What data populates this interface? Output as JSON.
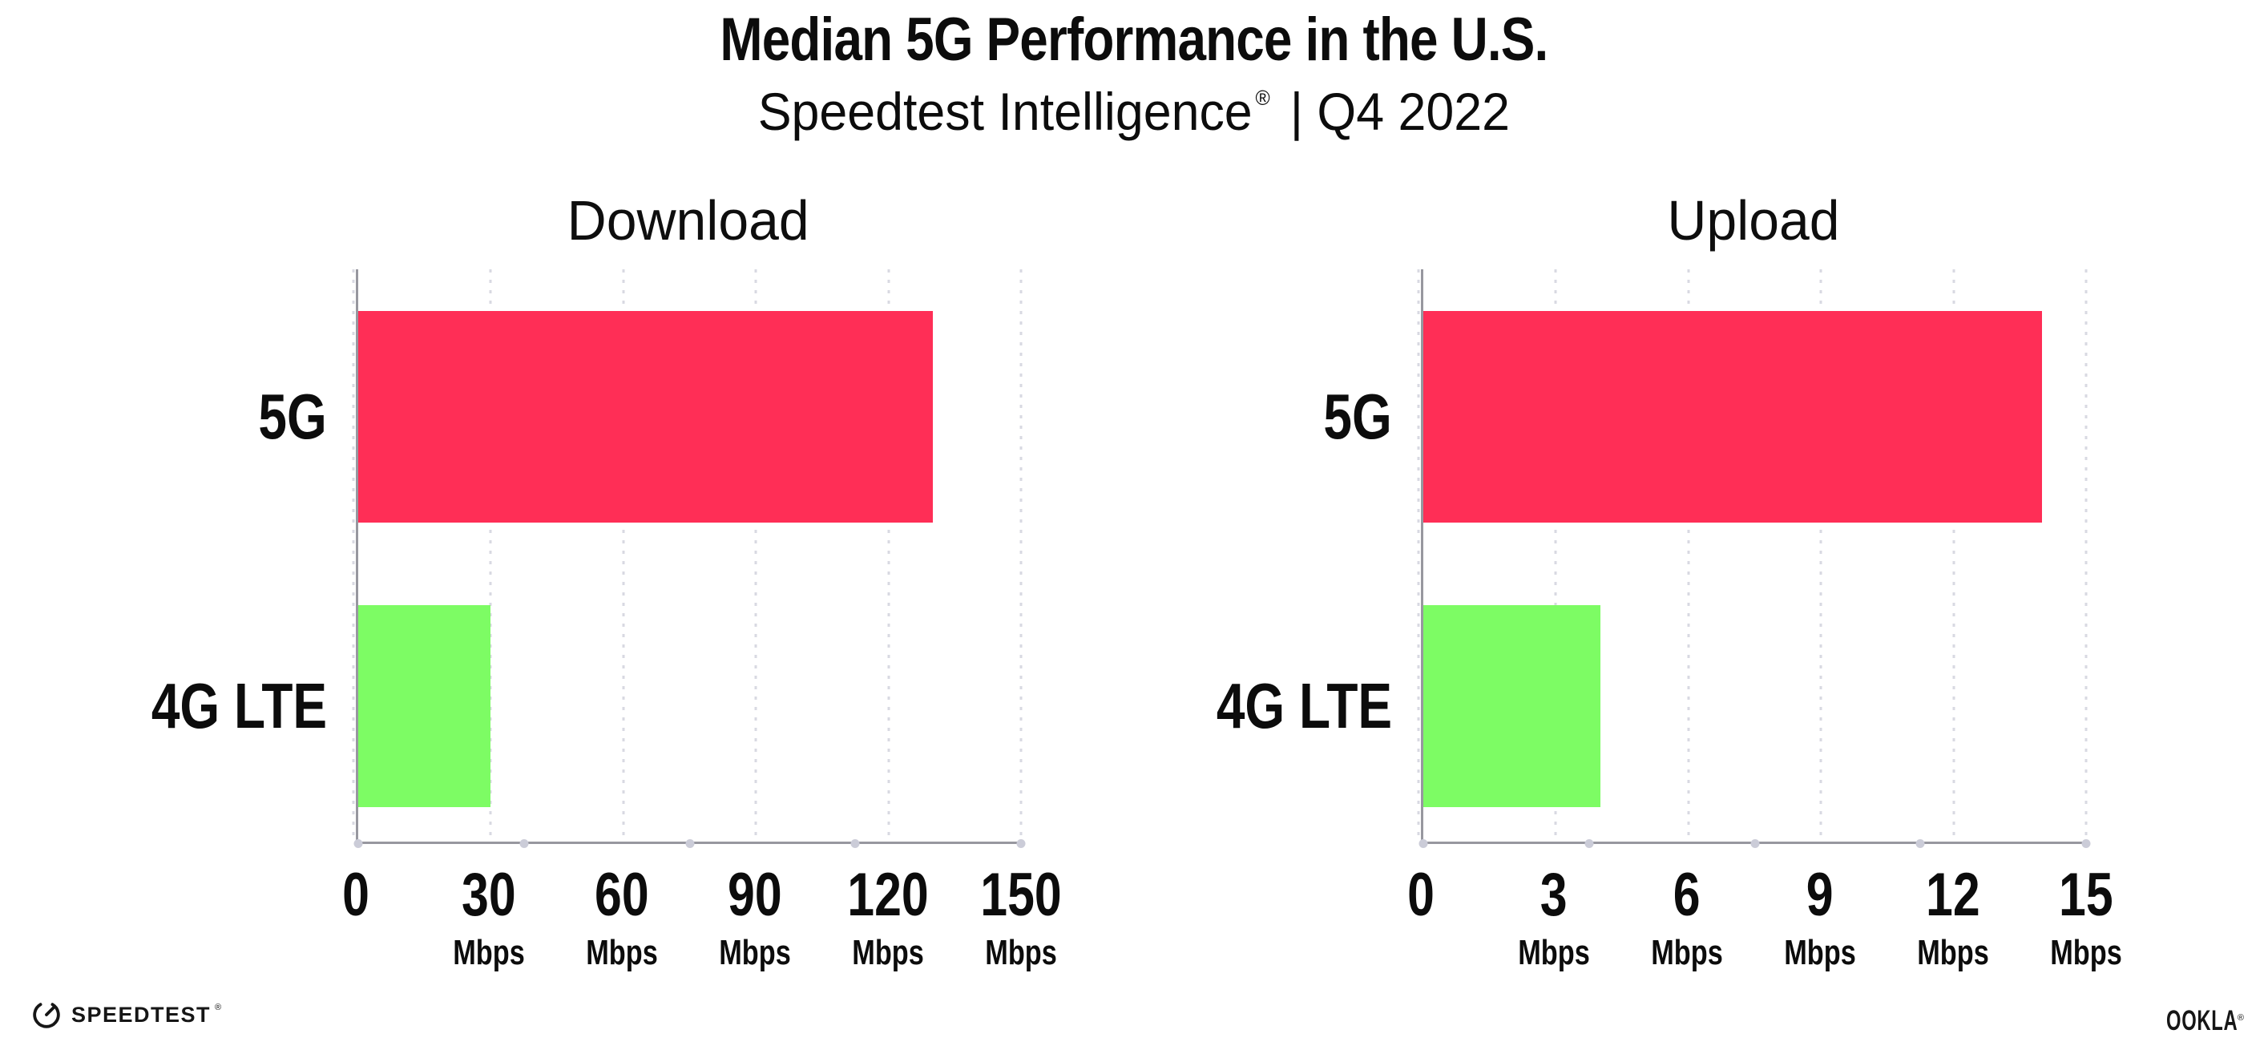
{
  "header": {
    "title": "Median 5G Performance in the U.S.",
    "subtitle_brand": "Speedtest Intelligence",
    "subtitle_registered": "®",
    "subtitle_rest": " | Q4 2022"
  },
  "chart_data": [
    {
      "type": "bar",
      "orientation": "horizontal",
      "title": "Download",
      "categories": [
        "5G",
        "4G LTE"
      ],
      "values": [
        130,
        30
      ],
      "value_unit": "Mbps",
      "xlim": [
        0,
        150
      ],
      "xticks": [
        0,
        30,
        60,
        90,
        120,
        150
      ],
      "tick_unit_label": "Mbps",
      "bar_colors": [
        "#ff2e56",
        "#7dfc64"
      ],
      "grid": "dotted vertical gridlines at each tick",
      "legend": "none"
    },
    {
      "type": "bar",
      "orientation": "horizontal",
      "title": "Upload",
      "categories": [
        "5G",
        "4G LTE"
      ],
      "values": [
        14,
        4
      ],
      "value_unit": "Mbps",
      "xlim": [
        0,
        15
      ],
      "xticks": [
        0,
        3,
        6,
        9,
        12,
        15
      ],
      "tick_unit_label": "Mbps",
      "bar_colors": [
        "#ff2e56",
        "#7dfc64"
      ],
      "grid": "dotted vertical gridlines at each tick",
      "legend": "none"
    }
  ],
  "footer": {
    "speedtest_label": "SPEEDTEST",
    "speedtest_registered": "®",
    "ookla_label": "OOKLA",
    "ookla_registered": "®"
  },
  "colors": {
    "bar_5g": "#ff2e56",
    "bar_4g_lte": "#7dfc64",
    "axis": "#97979f",
    "grid_dot": "#d8d9e2",
    "axis_dot": "#cbccd8",
    "text": "#0c0c0c"
  }
}
